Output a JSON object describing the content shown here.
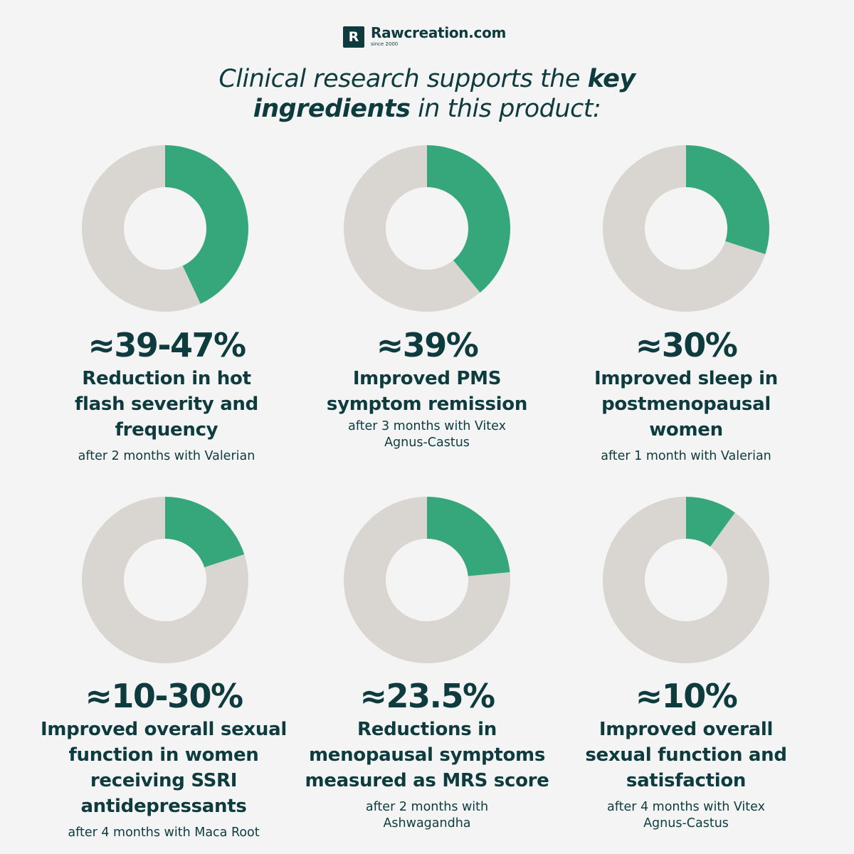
{
  "brand": {
    "logo_letter": "R",
    "name": "Rawcreation.com",
    "since": "since 2000"
  },
  "headline": {
    "part1": "Clinical research supports the ",
    "bold1": "key",
    "bold2": "ingredients",
    "part2": " in this product:"
  },
  "colors": {
    "accent": "#35a77b",
    "remainder": "#d9d5d0",
    "text": "#0d3b3e",
    "background": "#f4f4f4"
  },
  "chart_data": [
    {
      "type": "pie",
      "style": "donut",
      "value_label": "≈39-47%",
      "value": 43,
      "label": "Reduction in hot flash severity and frequency",
      "note": "after 2 months with Valerian"
    },
    {
      "type": "pie",
      "style": "donut",
      "value_label": "≈39%",
      "value": 39,
      "label": "Improved PMS symptom remission",
      "note": "after 3 months with Vitex Agnus-Castus"
    },
    {
      "type": "pie",
      "style": "donut",
      "value_label": "≈30%",
      "value": 30,
      "label": "Improved sleep in postmenopausal women",
      "note": "after 1 month with Valerian"
    },
    {
      "type": "pie",
      "style": "donut",
      "value_label": "≈10-30%",
      "value": 20,
      "label": "Improved overall sexual function in women receiving SSRI antidepressants",
      "note": "after 4 months with Maca Root"
    },
    {
      "type": "pie",
      "style": "donut",
      "value_label": "≈23.5%",
      "value": 23.5,
      "label": "Reductions in menopausal symptoms measured as MRS score",
      "note": "after 2 months with Ashwagandha"
    },
    {
      "type": "pie",
      "style": "donut",
      "value_label": "≈10%",
      "value": 10,
      "label": "Improved overall sexual function and satisfaction",
      "note": "after 4 months with Vitex Agnus-Castus"
    }
  ]
}
